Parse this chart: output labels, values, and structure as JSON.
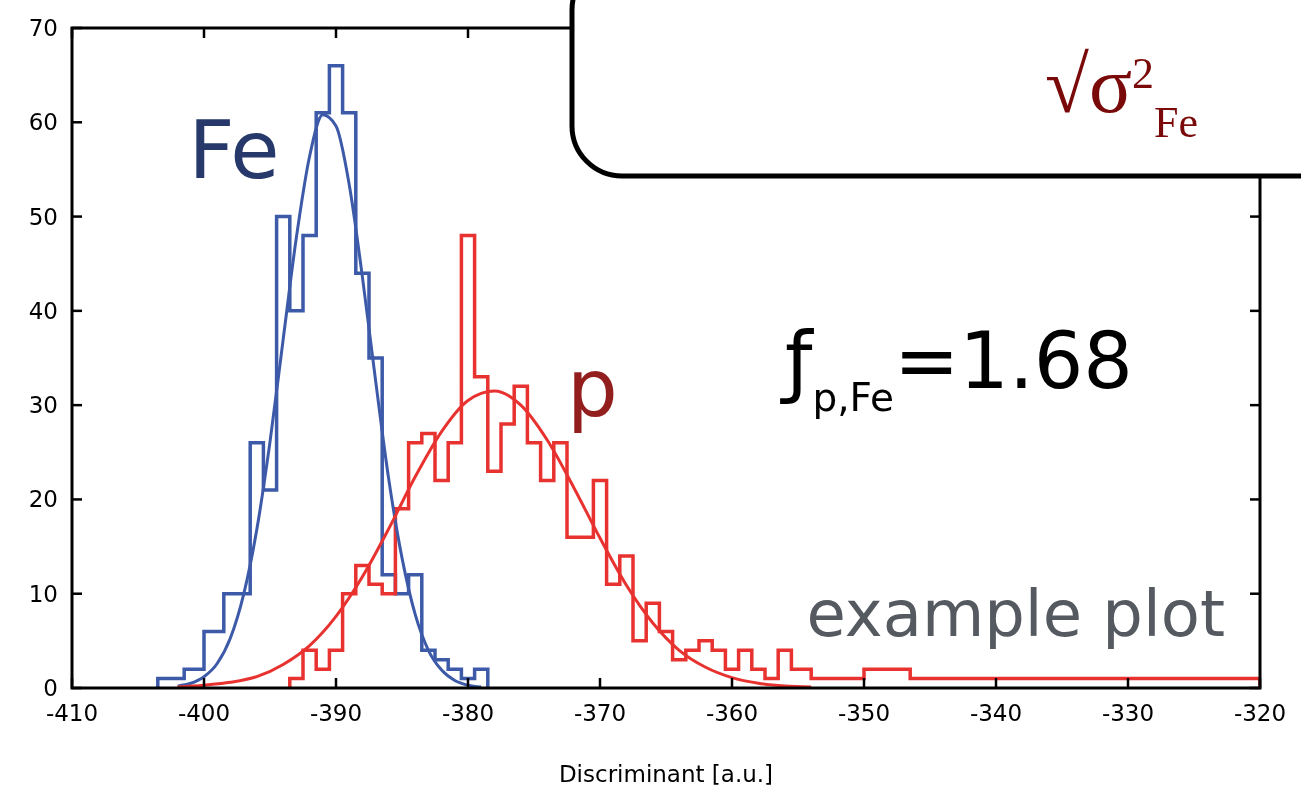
{
  "chart_data": {
    "type": "histogram",
    "xlabel": "Discriminant [a.u.]",
    "xlim": [
      -410,
      -320
    ],
    "xticks": [
      -410,
      -400,
      -390,
      -380,
      -370,
      -360,
      -350,
      -340,
      -330,
      -320
    ],
    "ylim": [
      0,
      70
    ],
    "yticks": [
      0,
      10,
      20,
      30,
      40,
      50,
      60,
      70
    ],
    "series": [
      {
        "name": "Fe",
        "color": "#3d5aa9",
        "bins": [
          -403.5,
          -401.5,
          -400,
          -398.5,
          -396.5,
          -395.5,
          -394.5,
          -393.5,
          -392.5,
          -391.5,
          -390.5,
          -389.5,
          -388.5,
          -387.5,
          -386.5,
          -385.5,
          -384.5,
          -383.5,
          -382.5,
          -381.5,
          -380.5,
          -379.5,
          -378.5
        ],
        "values": [
          1,
          2,
          6,
          10,
          26,
          21,
          50,
          40,
          48,
          61,
          66,
          61,
          44,
          35,
          12,
          10,
          12,
          4,
          3,
          2,
          1,
          2
        ]
      },
      {
        "name": "p",
        "color": "#e8322f",
        "bins": [
          -393.5,
          -392.5,
          -391.5,
          -390.5,
          -389.5,
          -388.5,
          -387.5,
          -386.5,
          -385.5,
          -384.5,
          -383.5,
          -382.5,
          -381.5,
          -380.5,
          -379.5,
          -378.5,
          -377.5,
          -376.5,
          -375.5,
          -374.5,
          -373.5,
          -372.5,
          -370.5,
          -369.5,
          -368.5,
          -367.5,
          -366.5,
          -365.5,
          -364.5,
          -363.5,
          -362.5,
          -361.5,
          -360.5,
          -359.5,
          -358.5,
          -357.5,
          -356.5,
          -355.5,
          -354,
          -350,
          -346.5,
          -320
        ],
        "values": [
          1,
          4,
          2,
          4,
          10,
          13,
          11,
          10,
          19,
          26,
          27,
          22,
          26,
          48,
          33,
          23,
          28,
          32,
          26,
          22,
          26,
          16,
          22,
          11,
          14,
          5,
          9,
          6,
          3,
          4,
          5,
          4,
          2,
          4,
          2,
          1,
          4,
          2,
          1,
          2,
          1
        ]
      },
      {
        "type": "line",
        "color": "#3d5aa9",
        "x": [
          -402,
          -401,
          -400,
          -399,
          -398,
          -397,
          -396,
          -395,
          -394,
          -393,
          -392,
          -391,
          -390,
          -389,
          -388,
          -387,
          -386,
          -385,
          -384,
          -383,
          -382,
          -381,
          -380,
          -379
        ],
        "values": [
          0.2,
          0.5,
          1.2,
          2.6,
          5.3,
          9.9,
          16.8,
          26.1,
          37,
          47.8,
          56.4,
          60.8,
          59.6,
          53.4,
          43.6,
          32.6,
          22.1,
          13.8,
          7.8,
          4,
          1.9,
          0.8,
          0.3,
          0.1
        ]
      },
      {
        "type": "line",
        "color": "#e8322f",
        "x": [
          -402,
          -400,
          -398,
          -396,
          -394,
          -392,
          -390,
          -388,
          -386,
          -384,
          -382,
          -380,
          -378,
          -376,
          -374,
          -372,
          -370,
          -368,
          -366,
          -364,
          -362,
          -360,
          -358,
          -356,
          -354
        ],
        "values": [
          0.1,
          0.3,
          0.6,
          1.2,
          2.5,
          4.5,
          7.6,
          11.8,
          16.9,
          22.4,
          27.2,
          30.5,
          31.5,
          30,
          26.3,
          21.3,
          15.9,
          10.9,
          6.9,
          4,
          2.2,
          1.1,
          0.5,
          0.2,
          0.1
        ]
      }
    ],
    "annotations": [
      "ƒ$_{p,Fe}$=1.68",
      "example plot",
      "√σ$^{2}$$_{Fe}$"
    ]
  }
}
